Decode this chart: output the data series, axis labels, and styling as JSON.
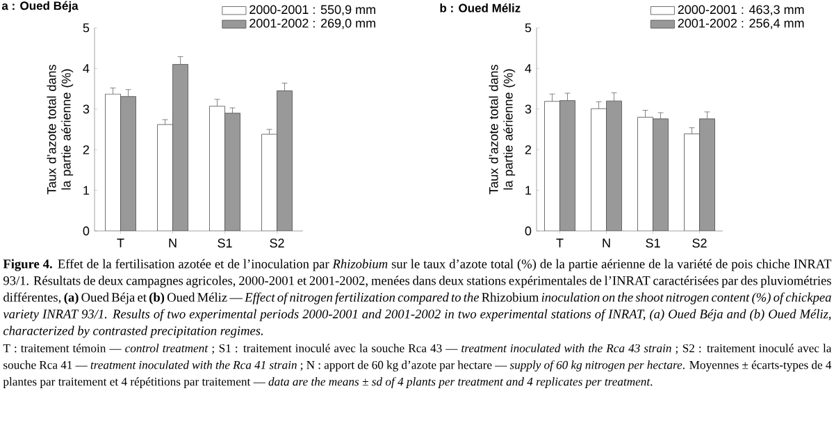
{
  "chart_data": [
    {
      "type": "bar",
      "title": "a : Oued Béja",
      "ylabel": "Taux d’azote total dans la partie aérienne (%)",
      "categories": [
        "T",
        "N",
        "S1",
        "S2"
      ],
      "series": [
        {
          "name": "2000-2001 : 550,9 mm",
          "color": "#ffffff",
          "values": [
            3.37,
            2.62,
            3.07,
            2.38
          ],
          "errors": [
            0.15,
            0.12,
            0.17,
            0.12
          ]
        },
        {
          "name": "2001-2002 : 269,0 mm",
          "color": "#999999",
          "values": [
            3.31,
            4.1,
            2.9,
            3.45
          ],
          "errors": [
            0.17,
            0.19,
            0.13,
            0.19
          ]
        }
      ],
      "ylim": [
        0,
        5
      ],
      "yticks": [
        0,
        1,
        2,
        3,
        4,
        5
      ],
      "legend": "top right",
      "annotations": [
        "**Figure 4.** Effet de la fertilisation azotée et de l’inoculation par *Rhizobium* sur le taux d’azote total (%) de la partie aérienne de la variété de pois chiche INRAT 93/1. Résultats de deux campagnes agricoles, 2000-2001 et 2001-2002, menées dans deux stations expérimentales de l’INRAT caractérisées par des pluviométries différentes, **(a)** Oued Béja et **(b)** Oued Méliz — *Effect of nitrogen fertilization compared to the* Rhizobium *inoculation on the shoot nitrogen content (%) of chickpea variety INRAT 93/1. Results of two experimental periods 2000-2001 and 2001-2002 in two experimental stations of INRAT, (a) Oued Béja and (b) Oued Méliz, characterized by contrasted precipitation regimes.*",
        "T : traitement témoin — *control treatment* ; S1 : traitement inoculé avec la souche Rca 43 — *treatment inoculated with the Rca 43 strain* ; S2 : traitement inoculé avec la souche Rca 41 — *treatment inoculated with the Rca 41 strain* ; N : apport de 60 kg d’azote par hectare — *supply of 60 kg nitrogen per hectare*. Moyennes ± écarts-types de 4 plantes par traitement et 4 répétitions par traitement — *data are the means ± sd of 4 plants per treatment and 4 replicates per treatment*."
      ]
    },
    {
      "type": "bar",
      "title": "b : Oued Méliz",
      "ylabel": "Taux d’azote total dans la partie aérienne (%)",
      "categories": [
        "T",
        "N",
        "S1",
        "S2"
      ],
      "series": [
        {
          "name": "2000-2001 : 463,3 mm",
          "color": "#ffffff",
          "values": [
            3.19,
            3.01,
            2.8,
            2.39
          ],
          "errors": [
            0.18,
            0.17,
            0.17,
            0.15
          ]
        },
        {
          "name": "2001-2002 : 256,4 mm",
          "color": "#999999",
          "values": [
            3.21,
            3.2,
            2.76,
            2.76
          ],
          "errors": [
            0.18,
            0.2,
            0.15,
            0.17
          ]
        }
      ],
      "ylim": [
        0,
        5
      ],
      "yticks": [
        0,
        1,
        2,
        3,
        4,
        5
      ],
      "legend": "top right"
    }
  ]
}
